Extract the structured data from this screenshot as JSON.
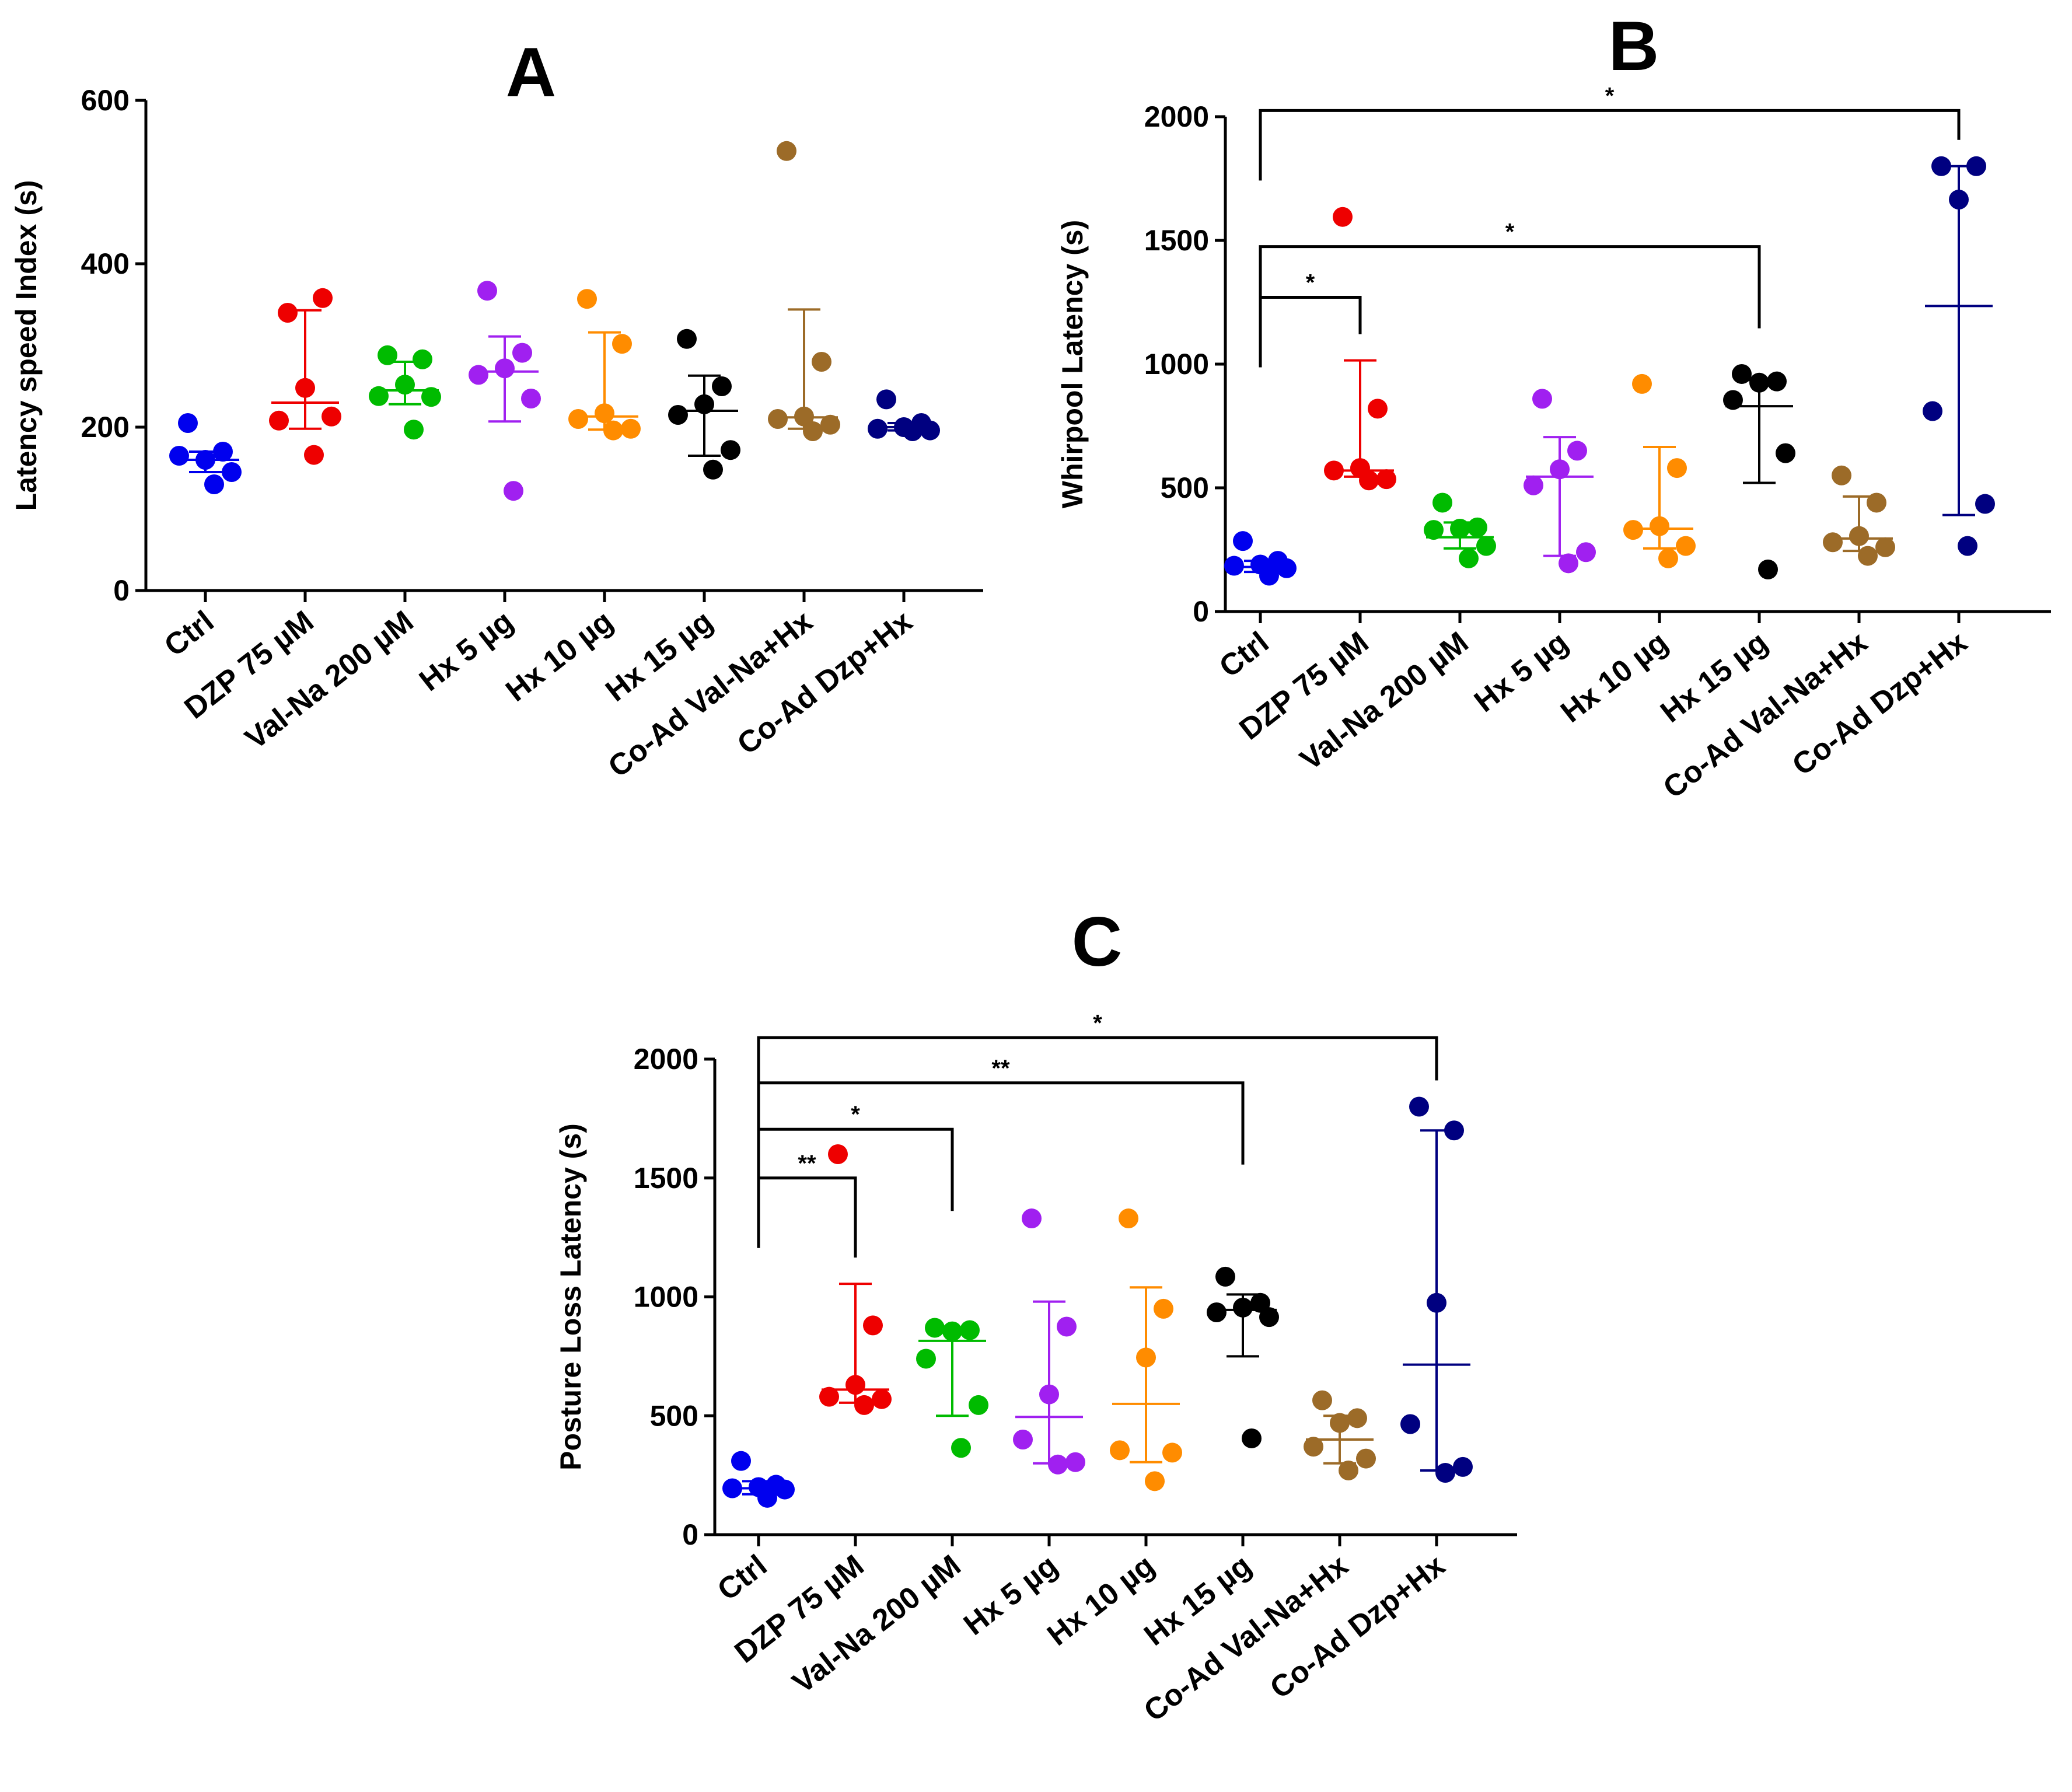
{
  "chart_data": [
    {
      "panel": "A",
      "type": "scatter",
      "title": "A",
      "ylabel": "Latency speed Index (s)",
      "ylim": [
        0,
        600
      ],
      "yticks": [
        0,
        200,
        400,
        600
      ],
      "categories": [
        "Ctrl",
        "DZP 75 µM",
        "Val-Na 200 µM",
        "Hx 5 µg",
        "Hx 10 µg",
        "Hx 15 µg",
        "Co-Ad Val-Na+Hx",
        "Co-Ad Dzp+Hx"
      ],
      "colors": [
        "#0000ee",
        "#ee0000",
        "#00bb00",
        "#a020f0",
        "#ff8c00",
        "#000000",
        "#9c6b28",
        "#000080"
      ],
      "groups": [
        {
          "points": [
            205,
            170,
            160,
            165,
            145,
            130
          ],
          "mid": 160,
          "low": 145,
          "high": 170
        },
        {
          "points": [
            340,
            358,
            248,
            208,
            213,
            166
          ],
          "mid": 230,
          "low": 198,
          "high": 343
        },
        {
          "points": [
            288,
            283,
            252,
            238,
            237,
            197
          ],
          "mid": 245,
          "low": 228,
          "high": 280
        },
        {
          "points": [
            367,
            291,
            272,
            264,
            235,
            122
          ],
          "mid": 268,
          "low": 207,
          "high": 311
        },
        {
          "points": [
            357,
            302,
            217,
            210,
            198,
            196
          ],
          "mid": 213,
          "low": 197,
          "high": 316
        },
        {
          "points": [
            308,
            250,
            228,
            215,
            172,
            148
          ],
          "mid": 220,
          "low": 165,
          "high": 263
        },
        {
          "points": [
            538,
            280,
            213,
            210,
            203,
            195
          ],
          "mid": 212,
          "low": 198,
          "high": 344
        },
        {
          "points": [
            234,
            205,
            200,
            198,
            196,
            195
          ],
          "mid": 200,
          "low": 196,
          "high": 205
        }
      ],
      "significance": []
    },
    {
      "panel": "B",
      "type": "scatter",
      "title": "B",
      "ylabel": "Whirpool Latency (s)",
      "ylim": [
        0,
        2000
      ],
      "yticks": [
        0,
        500,
        1000,
        1500,
        2000
      ],
      "categories": [
        "Ctrl",
        "DZP 75 µM",
        "Val-Na 200 µM",
        "Hx 5 µg",
        "Hx 10 µg",
        "Hx 15 µg",
        "Co-Ad Val-Na+Hx",
        "Co-Ad Dzp+Hx"
      ],
      "colors": [
        "#0000ee",
        "#ee0000",
        "#00bb00",
        "#a020f0",
        "#ff8c00",
        "#000000",
        "#9c6b28",
        "#000080"
      ],
      "groups": [
        {
          "points": [
            285,
            205,
            190,
            185,
            175,
            145
          ],
          "mid": 180,
          "low": 160,
          "high": 205
        },
        {
          "points": [
            1595,
            820,
            580,
            570,
            535,
            530
          ],
          "mid": 570,
          "low": 545,
          "high": 1015
        },
        {
          "points": [
            440,
            340,
            335,
            330,
            265,
            215
          ],
          "mid": 300,
          "low": 255,
          "high": 360
        },
        {
          "points": [
            860,
            650,
            575,
            510,
            240,
            195
          ],
          "mid": 545,
          "low": 225,
          "high": 705
        },
        {
          "points": [
            920,
            580,
            345,
            330,
            265,
            215
          ],
          "mid": 335,
          "low": 255,
          "high": 665
        },
        {
          "points": [
            960,
            930,
            925,
            855,
            640,
            170
          ],
          "mid": 830,
          "low": 520,
          "high": 935
        },
        {
          "points": [
            550,
            440,
            305,
            280,
            260,
            225
          ],
          "mid": 295,
          "low": 245,
          "high": 465
        },
        {
          "points": [
            1800,
            1800,
            1665,
            810,
            435,
            265
          ],
          "mid": 1235,
          "low": 390,
          "high": 1800
        }
      ],
      "significance": [
        {
          "label": "*",
          "from": 0,
          "to": 1,
          "level": 1270
        },
        {
          "label": "*",
          "from": 0,
          "to": 5,
          "level": 1475
        },
        {
          "label": "*",
          "from": 0,
          "to": 7,
          "level": 2025
        }
      ]
    },
    {
      "panel": "C",
      "type": "scatter",
      "title": "C",
      "ylabel": "Posture Loss Latency (s)",
      "ylim": [
        0,
        2000
      ],
      "yticks": [
        0,
        500,
        1000,
        1500,
        2000
      ],
      "categories": [
        "Ctrl",
        "DZP 75 µM",
        "Val-Na 200 µM",
        "Hx 5 µg",
        "Hx 10 µg",
        "Hx 15 µg",
        "Co-Ad Val-Na+Hx",
        "Co-Ad Dzp+Hx"
      ],
      "colors": [
        "#0000ee",
        "#ee0000",
        "#00bb00",
        "#a020f0",
        "#ff8c00",
        "#000000",
        "#9c6b28",
        "#000080"
      ],
      "groups": [
        {
          "points": [
            310,
            210,
            200,
            195,
            190,
            155
          ],
          "mid": 195,
          "low": 170,
          "high": 225
        },
        {
          "points": [
            1600,
            880,
            630,
            580,
            570,
            545
          ],
          "mid": 610,
          "low": 555,
          "high": 1055
        },
        {
          "points": [
            870,
            860,
            855,
            740,
            545,
            365
          ],
          "mid": 815,
          "low": 500,
          "high": 865
        },
        {
          "points": [
            1330,
            875,
            590,
            400,
            305,
            295
          ],
          "mid": 495,
          "low": 300,
          "high": 980
        },
        {
          "points": [
            1330,
            950,
            745,
            355,
            345,
            225
          ],
          "mid": 550,
          "low": 305,
          "high": 1040
        },
        {
          "points": [
            1085,
            975,
            955,
            935,
            915,
            405
          ],
          "mid": 945,
          "low": 750,
          "high": 1010
        },
        {
          "points": [
            565,
            490,
            470,
            370,
            320,
            270
          ],
          "mid": 400,
          "low": 300,
          "high": 500
        },
        {
          "points": [
            1800,
            1700,
            975,
            465,
            285,
            260
          ],
          "mid": 715,
          "low": 270,
          "high": 1700
        }
      ],
      "significance": [
        {
          "label": "**",
          "from": 0,
          "to": 1,
          "level": 1500
        },
        {
          "label": "*",
          "from": 0,
          "to": 2,
          "level": 1705
        },
        {
          "label": "**",
          "from": 0,
          "to": 5,
          "level": 1900
        },
        {
          "label": "*",
          "from": 0,
          "to": 7,
          "level": 2090
        }
      ]
    }
  ]
}
